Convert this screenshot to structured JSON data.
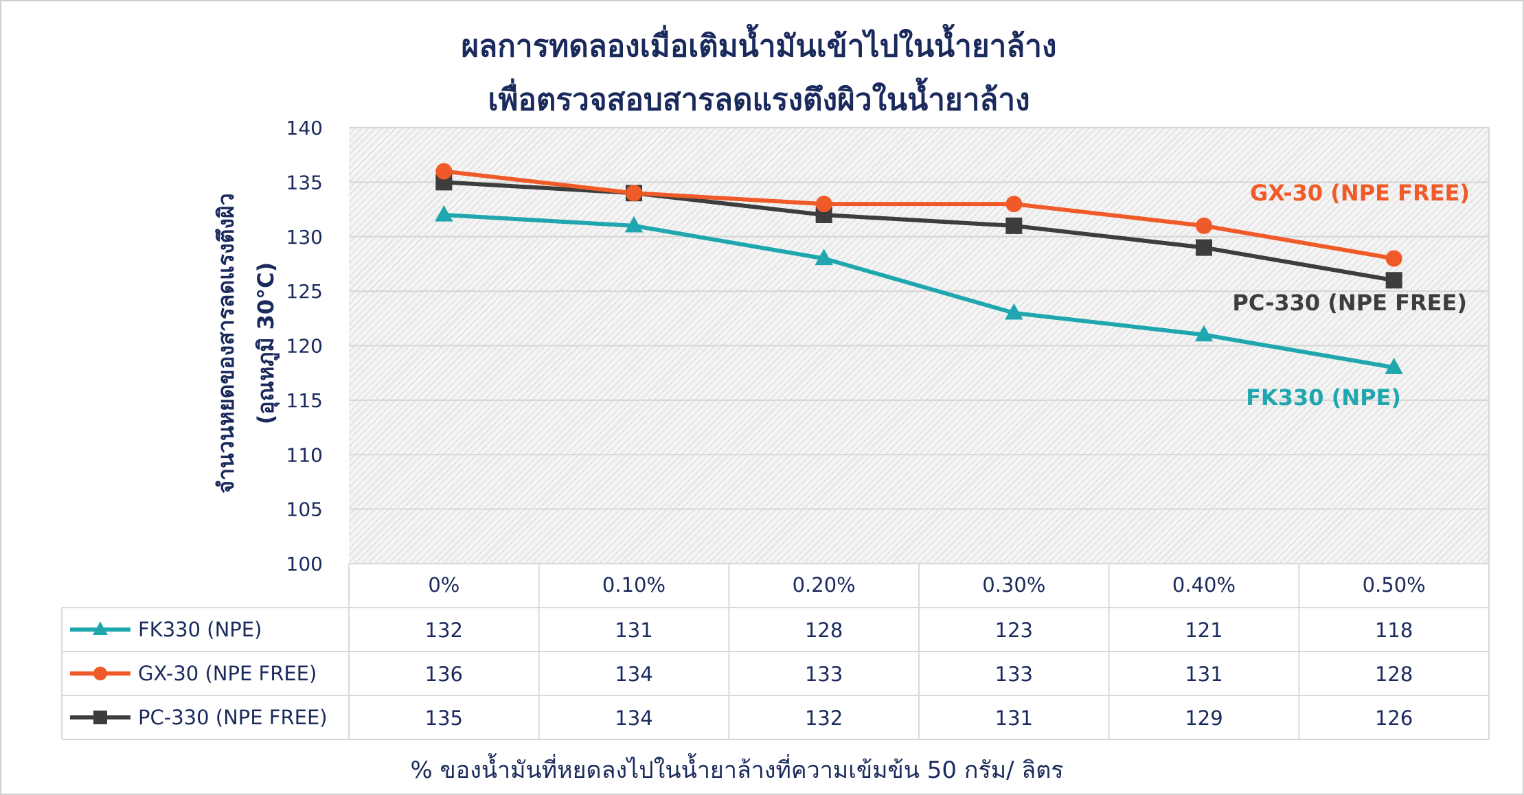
{
  "chart_data": {
    "type": "line",
    "title": [
      "ผลการทดลองเมื่อเติมน้ำมันเข้าไปในน้ำยาล้าง",
      "เพื่อตรวจสอบสารลดแรงตึงผิวในน้ำยาล้าง"
    ],
    "ylabel": [
      "จำนวนหยดของสารลดแรงตึงผิว",
      "(อุณหภูมิ 30°C)"
    ],
    "xlabel": "% ของน้ำมันที่หยดลงไปในน้ำยาล้างที่ความเข้มข้น 50 กรัม/ ลิตร",
    "categories": [
      "0%",
      "0.10%",
      "0.20%",
      "0.30%",
      "0.40%",
      "0.50%"
    ],
    "ylim": [
      100,
      140
    ],
    "yticks": [
      "100",
      "105",
      "110",
      "115",
      "120",
      "125",
      "130",
      "135",
      "140"
    ],
    "grid": true,
    "data_table": true,
    "series": [
      {
        "name": "FK330 (NPE)",
        "values": [
          132,
          131,
          128,
          123,
          121,
          118
        ],
        "color": "#20A6AE",
        "marker": "triangle"
      },
      {
        "name": "GX-30 (NPE FREE)",
        "values": [
          136,
          134,
          133,
          133,
          131,
          128
        ],
        "color": "#F05A28",
        "marker": "circle"
      },
      {
        "name": "PC-330 (NPE FREE)",
        "values": [
          135,
          134,
          132,
          131,
          129,
          126
        ],
        "color": "#3D3D3D",
        "marker": "square"
      }
    ],
    "annotations": [
      {
        "text": "GX-30 (NPE FREE)",
        "series": 1
      },
      {
        "text": "PC-330 (NPE FREE)",
        "series": 2
      },
      {
        "text": "FK330 (NPE)",
        "series": 0
      }
    ],
    "colors": {
      "title": "#1B2A5C",
      "axis_text": "#1B2A5C",
      "plot_background": "#F2F2F2",
      "hatch": "#DCDCDC",
      "table_border": "#D9D9D9"
    }
  }
}
